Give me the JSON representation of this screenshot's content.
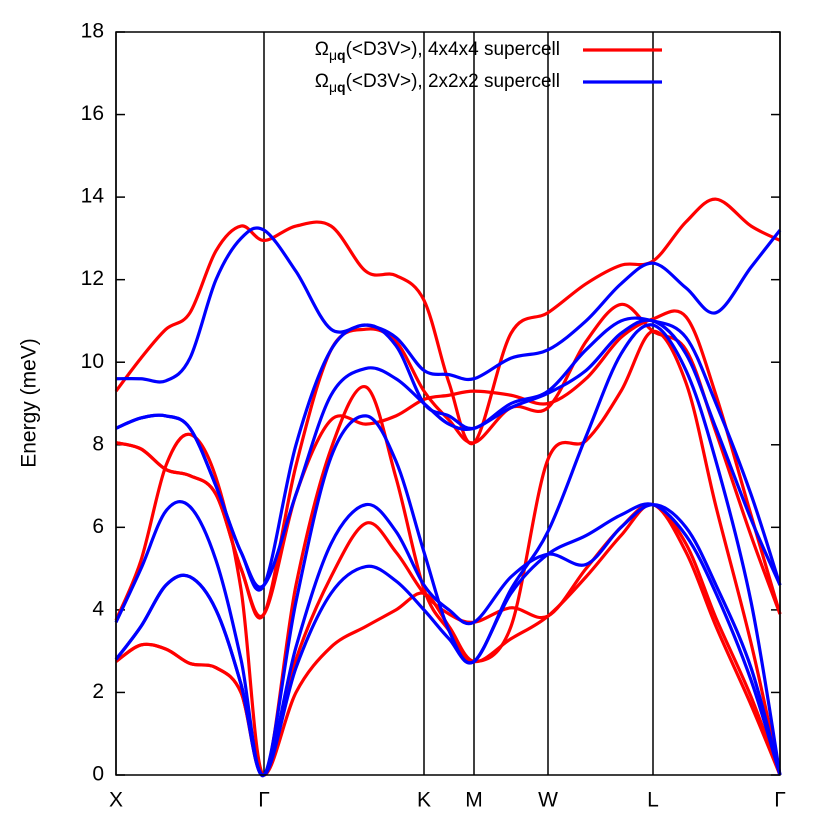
{
  "chart_data": {
    "type": "line",
    "ylabel": "Energy (meV)",
    "x": [
      0,
      25,
      50,
      74,
      100,
      125,
      148,
      180,
      215,
      250,
      280,
      308,
      333,
      358,
      395,
      432,
      470,
      505,
      537,
      570,
      600,
      635,
      664
    ],
    "xlim": [
      0,
      664
    ],
    "xticks": [
      {
        "value": 0,
        "label": "X"
      },
      {
        "value": 148,
        "label": "Γ"
      },
      {
        "value": 308,
        "label": "K"
      },
      {
        "value": 358,
        "label": "M"
      },
      {
        "value": 432,
        "label": "W"
      },
      {
        "value": 537,
        "label": "L"
      },
      {
        "value": 664,
        "label": "Γ"
      }
    ],
    "xgrid": true,
    "ylim": [
      0,
      18
    ],
    "yticks": [
      0,
      2,
      4,
      6,
      8,
      10,
      12,
      14,
      16,
      18
    ],
    "legend": "top",
    "series": [
      {
        "name": [
          "Ω",
          "μ",
          "q",
          "(<D3V>), 4x4x4 supercell"
        ],
        "color": "#ff0000",
        "bands": [
          [
            2.75,
            3.15,
            3.05,
            2.7,
            2.6,
            2.0,
            0,
            2.0,
            3.1,
            3.6,
            4.0,
            4.4,
            3.6,
            2.75,
            3.3,
            3.85,
            4.8,
            5.8,
            6.55,
            5.4,
            3.6,
            1.7,
            0
          ],
          [
            2.75,
            3.15,
            3.05,
            2.7,
            2.6,
            2.0,
            0,
            2.8,
            4.8,
            6.1,
            5.4,
            4.4,
            3.9,
            3.7,
            4.05,
            3.85,
            5.0,
            6.0,
            6.55,
            5.6,
            3.8,
            1.9,
            0
          ],
          [
            3.75,
            5.2,
            7.5,
            8.25,
            7.2,
            4.5,
            0,
            4.6,
            7.9,
            9.4,
            7.2,
            4.5,
            3.5,
            2.75,
            3.6,
            7.65,
            8.1,
            9.3,
            10.75,
            9.5,
            6.5,
            3.2,
            0
          ],
          [
            8.05,
            7.9,
            7.4,
            7.25,
            6.8,
            5.0,
            3.9,
            6.8,
            8.6,
            8.5,
            8.7,
            9.1,
            9.2,
            9.3,
            9.2,
            9.0,
            9.6,
            10.6,
            11.05,
            11.1,
            9.2,
            6.3,
            3.9
          ],
          [
            8.05,
            7.9,
            7.4,
            7.25,
            6.8,
            5.0,
            3.9,
            7.5,
            10.3,
            10.8,
            10.5,
            9.3,
            8.6,
            8.05,
            8.9,
            8.9,
            10.5,
            11.4,
            10.75,
            10.3,
            8.3,
            5.8,
            3.9
          ],
          [
            9.3,
            10.1,
            10.8,
            11.2,
            12.7,
            13.3,
            12.95,
            13.3,
            13.3,
            12.2,
            12.1,
            11.5,
            9.5,
            8.05,
            10.7,
            11.2,
            11.9,
            12.35,
            12.45,
            13.4,
            13.95,
            13.3,
            12.95
          ]
        ]
      },
      {
        "name": [
          "Ω",
          "μ",
          "q",
          "(<D3V>), 2x2x2 supercell"
        ],
        "color": "#0000ff",
        "bands": [
          [
            2.8,
            3.6,
            4.6,
            4.8,
            4.0,
            2.2,
            0,
            2.6,
            4.4,
            5.05,
            4.7,
            4.0,
            3.3,
            2.75,
            4.4,
            5.35,
            5.8,
            6.3,
            6.55,
            5.8,
            4.4,
            2.3,
            0
          ],
          [
            2.8,
            3.6,
            4.6,
            4.8,
            4.0,
            2.2,
            0,
            3.1,
            5.6,
            6.55,
            5.9,
            4.6,
            4.0,
            3.7,
            4.8,
            5.35,
            5.1,
            6.0,
            6.55,
            6.0,
            4.6,
            2.6,
            0
          ],
          [
            3.7,
            5.0,
            6.4,
            6.5,
            5.2,
            2.8,
            0,
            4.2,
            7.7,
            8.7,
            7.6,
            5.4,
            3.5,
            2.75,
            4.5,
            5.9,
            8.2,
            10.2,
            10.9,
            9.8,
            7.6,
            4.2,
            0
          ],
          [
            8.4,
            8.65,
            8.7,
            8.4,
            7.0,
            5.4,
            4.6,
            8.0,
            10.3,
            10.9,
            10.4,
            9.0,
            8.7,
            8.4,
            9.0,
            9.3,
            10.3,
            11.0,
            11.0,
            10.6,
            9.0,
            6.8,
            4.6
          ],
          [
            8.4,
            8.65,
            8.7,
            8.4,
            7.0,
            5.4,
            4.6,
            6.8,
            9.2,
            9.85,
            9.6,
            9.0,
            8.5,
            8.4,
            8.9,
            9.25,
            9.8,
            10.7,
            11.0,
            10.2,
            8.4,
            6.2,
            4.6
          ],
          [
            9.6,
            9.6,
            9.55,
            10.1,
            12.0,
            13.0,
            13.2,
            12.2,
            10.8,
            10.9,
            10.6,
            9.8,
            9.7,
            9.6,
            10.1,
            10.3,
            11.0,
            11.9,
            12.4,
            11.8,
            11.2,
            12.3,
            13.2
          ]
        ]
      }
    ]
  }
}
